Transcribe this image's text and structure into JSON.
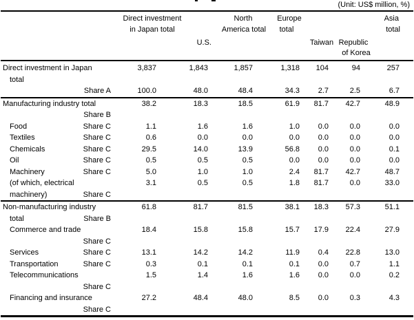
{
  "unit_note": "(Unit: US$ million, %)",
  "header": {
    "col1_line1": "Direct investment",
    "col1_line2": "in Japan total",
    "col2": "U.S.",
    "col3_line1": "North",
    "col3_line2": "America total",
    "col4_line1": "Europe",
    "col4_line2": "total",
    "col5": "Taiwan",
    "col6_line1": "Republic",
    "col6_line2": "of Korea",
    "col7_line1": "Asia",
    "col7_line2": "total"
  },
  "table": {
    "columns": [
      "Direct investment in Japan total",
      "U.S.",
      "North America total",
      "Europe total",
      "Taiwan",
      "Republic of Korea",
      "Asia total"
    ],
    "lines": [
      {
        "label": "Direct investment in Japan",
        "indent": false,
        "share": "",
        "values": [
          "3,837",
          "1,843",
          "1,857",
          "1,318",
          "104",
          "94",
          "257"
        ],
        "rule_below": false
      },
      {
        "label": "total",
        "indent": true,
        "share": "",
        "values": [
          "",
          "",
          "",
          "",
          "",
          "",
          ""
        ],
        "rule_below": false
      },
      {
        "label": "",
        "indent": false,
        "share": "Share A",
        "values": [
          "100.0",
          "48.0",
          "48.4",
          "34.3",
          "2.7",
          "2.5",
          "6.7"
        ],
        "rule_below": true
      },
      {
        "label": "Manufacturing industry total",
        "indent": false,
        "share": "",
        "values": [
          "38.2",
          "18.3",
          "18.5",
          "61.9",
          "81.7",
          "42.7",
          "48.9"
        ],
        "rule_below": false
      },
      {
        "label": "",
        "indent": false,
        "share": "Share B",
        "values": [
          "",
          "",
          "",
          "",
          "",
          "",
          ""
        ],
        "rule_below": false
      },
      {
        "label": "Food",
        "indent": true,
        "share": "Share C",
        "values": [
          "1.1",
          "1.6",
          "1.6",
          "1.0",
          "0.0",
          "0.0",
          "0.0"
        ],
        "rule_below": false
      },
      {
        "label": "Textiles",
        "indent": true,
        "share": "Share C",
        "values": [
          "0.6",
          "0.0",
          "0.0",
          "0.0",
          "0.0",
          "0.0",
          "0.0"
        ],
        "rule_below": false
      },
      {
        "label": "Chemicals",
        "indent": true,
        "share": "Share C",
        "values": [
          "29.5",
          "14.0",
          "13.9",
          "56.8",
          "0.0",
          "0.0",
          "0.1"
        ],
        "rule_below": false
      },
      {
        "label": "Oil",
        "indent": true,
        "share": "Share C",
        "values": [
          "0.5",
          "0.5",
          "0.5",
          "0.0",
          "0.0",
          "0.0",
          "0.0"
        ],
        "rule_below": false
      },
      {
        "label": "Machinery",
        "indent": true,
        "share": "Share C",
        "values": [
          "5.0",
          "1.0",
          "1.0",
          "2.4",
          "81.7",
          "42.7",
          "48.7"
        ],
        "rule_below": false
      },
      {
        "label": "(of which, electrical",
        "indent": true,
        "share": "",
        "values": [
          "3.1",
          "0.5",
          "0.5",
          "1.8",
          "81.7",
          "0.0",
          "33.0"
        ],
        "rule_below": false
      },
      {
        "label": "machinery)",
        "indent": true,
        "share": "Share C",
        "values": [
          "",
          "",
          "",
          "",
          "",
          "",
          ""
        ],
        "rule_below": true
      },
      {
        "label": "Non-manufacturing industry",
        "indent": false,
        "share": "",
        "values": [
          "61.8",
          "81.7",
          "81.5",
          "38.1",
          "18.3",
          "57.3",
          "51.1"
        ],
        "rule_below": false
      },
      {
        "label": "total",
        "indent": true,
        "share": "Share B",
        "values": [
          "",
          "",
          "",
          "",
          "",
          "",
          ""
        ],
        "rule_below": false
      },
      {
        "label": "Commerce and trade",
        "indent": true,
        "share": "",
        "values": [
          "18.4",
          "15.8",
          "15.8",
          "15.7",
          "17.9",
          "22.4",
          "27.9"
        ],
        "rule_below": false
      },
      {
        "label": "",
        "indent": false,
        "share": "Share C",
        "values": [
          "",
          "",
          "",
          "",
          "",
          "",
          ""
        ],
        "rule_below": false
      },
      {
        "label": "Services",
        "indent": true,
        "share": "Share C",
        "values": [
          "13.1",
          "14.2",
          "14.2",
          "11.9",
          "0.4",
          "22.8",
          "13.0"
        ],
        "rule_below": false
      },
      {
        "label": "Transportation",
        "indent": true,
        "share": "Share C",
        "values": [
          "0.3",
          "0.1",
          "0.1",
          "0.1",
          "0.0",
          "0.7",
          "1.1"
        ],
        "rule_below": false
      },
      {
        "label": "Telecommunications",
        "indent": true,
        "share": "",
        "values": [
          "1.5",
          "1.4",
          "1.6",
          "1.6",
          "0.0",
          "0.0",
          "0.2"
        ],
        "rule_below": false
      },
      {
        "label": "",
        "indent": false,
        "share": "Share C",
        "values": [
          "",
          "",
          "",
          "",
          "",
          "",
          ""
        ],
        "rule_below": false
      },
      {
        "label": "Financing and insurance",
        "indent": true,
        "share": "",
        "values": [
          "27.2",
          "48.4",
          "48.0",
          "8.5",
          "0.0",
          "0.3",
          "4.3"
        ],
        "rule_below": false
      },
      {
        "label": "",
        "indent": false,
        "share": "Share C",
        "values": [
          "",
          "",
          "",
          "",
          "",
          "",
          ""
        ],
        "rule_below": false
      }
    ]
  }
}
